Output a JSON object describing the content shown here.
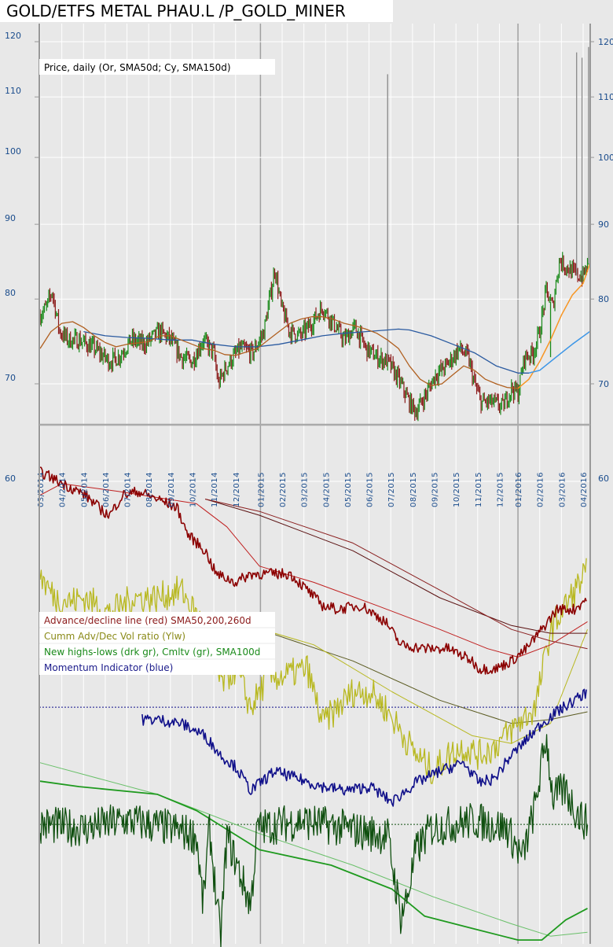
{
  "chart_data": {
    "type": "line",
    "title": "GOLD/ETFS METAL PHAU.L /P_GOLD_MINER",
    "colors": {
      "bg": "#e8e8e8",
      "grid": "#ffffff",
      "axis_text": "#1a4c8c",
      "up": "#1a8a1a",
      "down": "#8b1a1a",
      "sma50": "#b06020",
      "sma50_rising": "#ff9a20",
      "sma150": "#2a5aa0",
      "sma150_rising": "#3a9aee",
      "ad": "#8b0000",
      "ad_sma": "#c02020",
      "vol": "#b8b820",
      "vol_sma": "#5a5a20",
      "nhl": "#0f4f0f",
      "nhl_cum": "#1f9a1f",
      "nhl_sma": "#6ac06a",
      "momentum": "#10108a"
    },
    "x_ticks": [
      "03/2014",
      "04/2014",
      "05/2014",
      "06/2014",
      "07/2014",
      "08/2014",
      "09/2014",
      "10/2014",
      "11/2014",
      "12/2014",
      "01/2015",
      "02/2015",
      "03/2015",
      "04/2015",
      "05/2015",
      "06/2015",
      "07/2015",
      "08/2015",
      "09/2015",
      "10/2015",
      "11/2015",
      "12/2015",
      "01/2016",
      "02/2016",
      "03/2016",
      "04/2016"
    ],
    "x_unit": "months since 03/2014",
    "price_panel": {
      "legend": "Price, daily (Or, SMA50d; Cy, SMA150d)",
      "scale": "log",
      "ylim": [
        65,
        125
      ],
      "y_ticks": [
        120,
        110,
        100,
        90,
        80,
        70
      ],
      "y_tick_labels": [
        "120",
        "110",
        "100",
        "90",
        "80",
        "70"
      ],
      "price": [
        [
          0,
          78
        ],
        [
          0.3,
          79
        ],
        [
          0.55,
          81
        ],
        [
          0.9,
          76
        ],
        [
          1.3,
          75
        ],
        [
          1.8,
          75
        ],
        [
          2.5,
          74
        ],
        [
          3.2,
          72.5
        ],
        [
          3.6,
          73
        ],
        [
          4.2,
          75
        ],
        [
          4.8,
          74.5
        ],
        [
          5.5,
          76
        ],
        [
          6,
          75
        ],
        [
          6.5,
          73
        ],
        [
          7,
          72.5
        ],
        [
          7.5,
          75
        ],
        [
          8,
          73.5
        ],
        [
          8.2,
          70
        ],
        [
          8.6,
          72
        ],
        [
          9.2,
          74
        ],
        [
          9.8,
          73.5
        ],
        [
          10.3,
          76
        ],
        [
          10.7,
          82
        ],
        [
          10.8,
          84
        ],
        [
          11.1,
          79
        ],
        [
          11.5,
          76
        ],
        [
          12,
          75.5
        ],
        [
          12.5,
          77
        ],
        [
          13,
          79
        ],
        [
          13.5,
          77
        ],
        [
          14,
          75
        ],
        [
          14.5,
          76.5
        ],
        [
          15,
          74
        ],
        [
          15.5,
          73
        ],
        [
          16,
          72.5
        ],
        [
          16.5,
          70.5
        ],
        [
          17,
          68
        ],
        [
          17.3,
          67
        ],
        [
          17.8,
          69
        ],
        [
          18.2,
          71
        ],
        [
          18.7,
          72
        ],
        [
          19.3,
          74
        ],
        [
          19.7,
          73
        ],
        [
          20,
          70
        ],
        [
          20.3,
          68
        ],
        [
          20.8,
          68
        ],
        [
          21.3,
          67.5
        ],
        [
          21.7,
          69.5
        ],
        [
          22,
          69
        ],
        [
          22.3,
          73
        ],
        [
          22.7,
          73.5
        ],
        [
          23,
          76
        ],
        [
          23.3,
          81
        ],
        [
          23.6,
          79
        ],
        [
          23.9,
          85
        ],
        [
          24.3,
          84
        ],
        [
          24.7,
          83
        ],
        [
          25,
          83
        ],
        [
          25.3,
          85
        ]
      ],
      "spikes": [
        [
          16.0,
          114
        ],
        [
          24.7,
          118
        ],
        [
          24.95,
          117
        ],
        [
          25.25,
          119
        ],
        [
          23.5,
          73
        ]
      ],
      "sma50": [
        [
          0,
          74
        ],
        [
          0.5,
          76
        ],
        [
          1,
          77
        ],
        [
          1.5,
          77.2
        ],
        [
          2,
          76.5
        ],
        [
          2.5,
          75.5
        ],
        [
          3,
          74.7
        ],
        [
          3.5,
          74.2
        ],
        [
          4,
          74.5
        ],
        [
          5,
          74.8
        ],
        [
          5.5,
          75.5
        ],
        [
          6,
          75.5
        ],
        [
          6.5,
          75
        ],
        [
          7,
          74.5
        ],
        [
          7.5,
          74
        ],
        [
          8,
          73.8
        ],
        [
          8.5,
          73.3
        ],
        [
          9,
          73.2
        ],
        [
          9.5,
          73.6
        ],
        [
          10,
          74
        ],
        [
          10.5,
          75
        ],
        [
          11,
          76
        ],
        [
          11.5,
          77
        ],
        [
          12,
          77.5
        ],
        [
          12.5,
          77.8
        ],
        [
          13,
          77.8
        ],
        [
          13.5,
          77.5
        ],
        [
          14,
          77
        ],
        [
          14.5,
          76.7
        ],
        [
          15,
          76.3
        ],
        [
          15.5,
          75.8
        ],
        [
          16,
          75
        ],
        [
          16.5,
          74
        ],
        [
          17,
          72
        ],
        [
          17.5,
          70.5
        ],
        [
          18,
          69.8
        ],
        [
          18.5,
          70
        ],
        [
          19,
          71
        ],
        [
          19.5,
          72
        ],
        [
          20,
          71.5
        ],
        [
          20.5,
          70.5
        ],
        [
          21,
          70
        ],
        [
          21.5,
          69.6
        ],
        [
          22,
          69.5
        ],
        [
          22.5,
          70.5
        ],
        [
          23,
          72.5
        ],
        [
          23.5,
          75
        ],
        [
          24,
          78
        ],
        [
          24.5,
          80.5
        ],
        [
          25,
          82
        ],
        [
          25.3,
          84.5
        ]
      ],
      "sma150": [
        [
          2,
          76
        ],
        [
          3,
          75.5
        ],
        [
          4,
          75.3
        ],
        [
          5,
          75.2
        ],
        [
          6,
          75
        ],
        [
          7,
          75
        ],
        [
          8,
          74.5
        ],
        [
          9,
          74.2
        ],
        [
          10,
          74.2
        ],
        [
          11,
          74.5
        ],
        [
          12,
          75
        ],
        [
          13,
          75.5
        ],
        [
          14,
          75.8
        ],
        [
          15,
          76
        ],
        [
          16,
          76.2
        ],
        [
          16.5,
          76.3
        ],
        [
          17,
          76.2
        ],
        [
          18,
          75.5
        ],
        [
          19,
          74.5
        ],
        [
          20,
          73.5
        ],
        [
          21,
          72
        ],
        [
          22,
          71.2
        ],
        [
          22.5,
          71.2
        ],
        [
          23,
          71.5
        ],
        [
          23.5,
          72.5
        ],
        [
          24,
          73.5
        ],
        [
          24.5,
          74.5
        ],
        [
          25.3,
          76
        ]
      ]
    },
    "indicator_panel": {
      "y_tick": 60,
      "y_tick_label": "60",
      "ylim": [
        0,
        61.5
      ],
      "legend": [
        "Advance/decline line (red) SMA50,200,260d",
        "Cumm Adv/Dec Vol ratio (Ylw)",
        "New highs-lows (drk gr), Cmltv (gr), SMA100d",
        "Momentum Indicator (blue)"
      ],
      "ref_levels": [
        30.7,
        15.5
      ],
      "ad_line": [
        [
          0,
          61.2
        ],
        [
          0.4,
          60.7
        ],
        [
          0.7,
          60.2
        ],
        [
          1.4,
          59.2
        ],
        [
          2.1,
          58.2
        ],
        [
          2.9,
          56.1
        ],
        [
          3.2,
          55.6
        ],
        [
          3.8,
          58.2
        ],
        [
          4.5,
          58.7
        ],
        [
          5.4,
          57.7
        ],
        [
          6.3,
          56.6
        ],
        [
          6.8,
          53.1
        ],
        [
          7.6,
          51
        ],
        [
          8.1,
          48
        ],
        [
          9,
          46.9
        ],
        [
          9.7,
          48
        ],
        [
          10.5,
          48
        ],
        [
          11.5,
          48
        ],
        [
          12.3,
          45.9
        ],
        [
          13,
          43.9
        ],
        [
          13.7,
          43.4
        ],
        [
          14.8,
          43.9
        ],
        [
          15.9,
          41.8
        ],
        [
          16.6,
          38.8
        ],
        [
          17.7,
          38.3
        ],
        [
          18.8,
          38.3
        ],
        [
          19.9,
          36.7
        ],
        [
          20.2,
          35.7
        ],
        [
          21,
          35.7
        ],
        [
          21.7,
          36.7
        ],
        [
          22.4,
          38.3
        ],
        [
          23.1,
          40.8
        ],
        [
          23.8,
          43.4
        ],
        [
          24.6,
          43.4
        ],
        [
          25.2,
          44.9
        ]
      ],
      "ad_sma50": [
        [
          0,
          58.2
        ],
        [
          1,
          59.7
        ],
        [
          3.6,
          58.7
        ],
        [
          7.2,
          57.1
        ],
        [
          8.6,
          54.1
        ],
        [
          10.1,
          49
        ],
        [
          12.6,
          46.9
        ],
        [
          15.5,
          43.9
        ],
        [
          18.4,
          40.8
        ],
        [
          20.6,
          38.3
        ],
        [
          22,
          37.2
        ],
        [
          23.5,
          38.8
        ],
        [
          25.2,
          41.8
        ]
      ],
      "ad_sma200": [
        [
          7.6,
          57.7
        ],
        [
          10.1,
          56.1
        ],
        [
          14.4,
          52
        ],
        [
          18.4,
          45.9
        ],
        [
          21.7,
          40.8
        ],
        [
          23.5,
          39.3
        ],
        [
          25.2,
          38.3
        ]
      ],
      "ad_sma260": [
        [
          7.6,
          57.7
        ],
        [
          10.1,
          55.6
        ],
        [
          14.4,
          51
        ],
        [
          18.4,
          44.9
        ],
        [
          21.7,
          41.3
        ],
        [
          23.5,
          40.3
        ],
        [
          25.2,
          40.3
        ]
      ],
      "vol_ratio": [
        [
          0,
          48
        ],
        [
          0.3,
          46.4
        ],
        [
          0.7,
          44.9
        ],
        [
          1.4,
          44.4
        ],
        [
          2.1,
          44.9
        ],
        [
          3.2,
          42.9
        ],
        [
          4.3,
          44.9
        ],
        [
          5.4,
          44.9
        ],
        [
          6.5,
          45.9
        ],
        [
          7.6,
          40.8
        ],
        [
          8.3,
          33.7
        ],
        [
          9,
          35.7
        ],
        [
          9.7,
          30.6
        ],
        [
          10.5,
          34.7
        ],
        [
          11.2,
          34.7
        ],
        [
          12.3,
          35.7
        ],
        [
          13,
          28.6
        ],
        [
          13.7,
          30.6
        ],
        [
          14.4,
          32.7
        ],
        [
          15.2,
          32.7
        ],
        [
          15.9,
          30.6
        ],
        [
          16.6,
          27.6
        ],
        [
          17.3,
          24.5
        ],
        [
          18.1,
          22.4
        ],
        [
          18.8,
          24.5
        ],
        [
          19.5,
          25.5
        ],
        [
          20.2,
          24.5
        ],
        [
          20.9,
          25.5
        ],
        [
          22,
          28.6
        ],
        [
          22.8,
          30.6
        ],
        [
          23.5,
          40.8
        ],
        [
          24.2,
          43.9
        ],
        [
          25.2,
          48.5
        ]
      ],
      "vol_sma_a": [
        [
          9,
          41.8
        ],
        [
          12.6,
          38.8
        ],
        [
          16.2,
          32.7
        ],
        [
          19.9,
          27
        ],
        [
          21.7,
          26
        ],
        [
          23.5,
          28.6
        ],
        [
          25.2,
          40.8
        ]
      ],
      "vol_sma_b": [
        [
          10.1,
          40.8
        ],
        [
          14.4,
          36.7
        ],
        [
          18.4,
          31.6
        ],
        [
          21.7,
          28.6
        ],
        [
          23.5,
          29.1
        ],
        [
          25.2,
          30.1
        ]
      ],
      "momentum": [
        [
          4.7,
          29.1
        ],
        [
          5.4,
          29.1
        ],
        [
          6.5,
          28.6
        ],
        [
          7.6,
          27
        ],
        [
          8.3,
          24.5
        ],
        [
          9,
          23
        ],
        [
          9.7,
          19.9
        ],
        [
          10.8,
          22.4
        ],
        [
          11.9,
          21.4
        ],
        [
          13,
          20.4
        ],
        [
          14.1,
          19.9
        ],
        [
          15.2,
          20.4
        ],
        [
          16.2,
          18.4
        ],
        [
          17.3,
          20.9
        ],
        [
          18.4,
          22.4
        ],
        [
          19.5,
          23.5
        ],
        [
          20.2,
          20.9
        ],
        [
          20.9,
          21.4
        ],
        [
          21.7,
          24.5
        ],
        [
          22.4,
          26.5
        ],
        [
          23.1,
          28.6
        ],
        [
          23.8,
          30.1
        ],
        [
          25.2,
          32.7
        ]
      ],
      "nhl": [
        [
          0,
          15.5
        ],
        [
          2,
          15
        ],
        [
          4,
          16
        ],
        [
          6,
          15
        ],
        [
          7.2,
          14
        ],
        [
          7.5,
          5.1
        ],
        [
          7.8,
          15
        ],
        [
          8.3,
          0.5
        ],
        [
          8.6,
          14
        ],
        [
          9.7,
          5
        ],
        [
          10,
          15
        ],
        [
          12,
          16
        ],
        [
          14,
          15
        ],
        [
          16,
          14
        ],
        [
          16.6,
          3.6
        ],
        [
          16.9,
          6
        ],
        [
          17.3,
          12
        ],
        [
          18,
          15
        ],
        [
          20,
          16
        ],
        [
          21.5,
          15
        ],
        [
          22.2,
          11
        ],
        [
          22.8,
          18
        ],
        [
          23.3,
          27
        ],
        [
          23.6,
          19
        ],
        [
          24.2,
          20
        ],
        [
          24.7,
          17
        ],
        [
          25.2,
          15.5
        ]
      ],
      "nhl_cum": [
        [
          0,
          21.1
        ],
        [
          1.8,
          20.4
        ],
        [
          5.4,
          19.4
        ],
        [
          7.2,
          17.3
        ],
        [
          10.1,
          12.2
        ],
        [
          13.4,
          10.2
        ],
        [
          16.2,
          7.1
        ],
        [
          17.7,
          3.6
        ],
        [
          19.9,
          2
        ],
        [
          22,
          0.5
        ],
        [
          23.1,
          0.5
        ],
        [
          24.2,
          3.1
        ],
        [
          25.2,
          4.6
        ]
      ],
      "nhl_sma100": [
        [
          0,
          23.5
        ],
        [
          5.4,
          19.4
        ],
        [
          10.1,
          14.3
        ],
        [
          14.4,
          10.2
        ],
        [
          18.1,
          6.1
        ],
        [
          21.7,
          2.6
        ],
        [
          23.5,
          1
        ],
        [
          25.2,
          1.5
        ]
      ]
    }
  }
}
